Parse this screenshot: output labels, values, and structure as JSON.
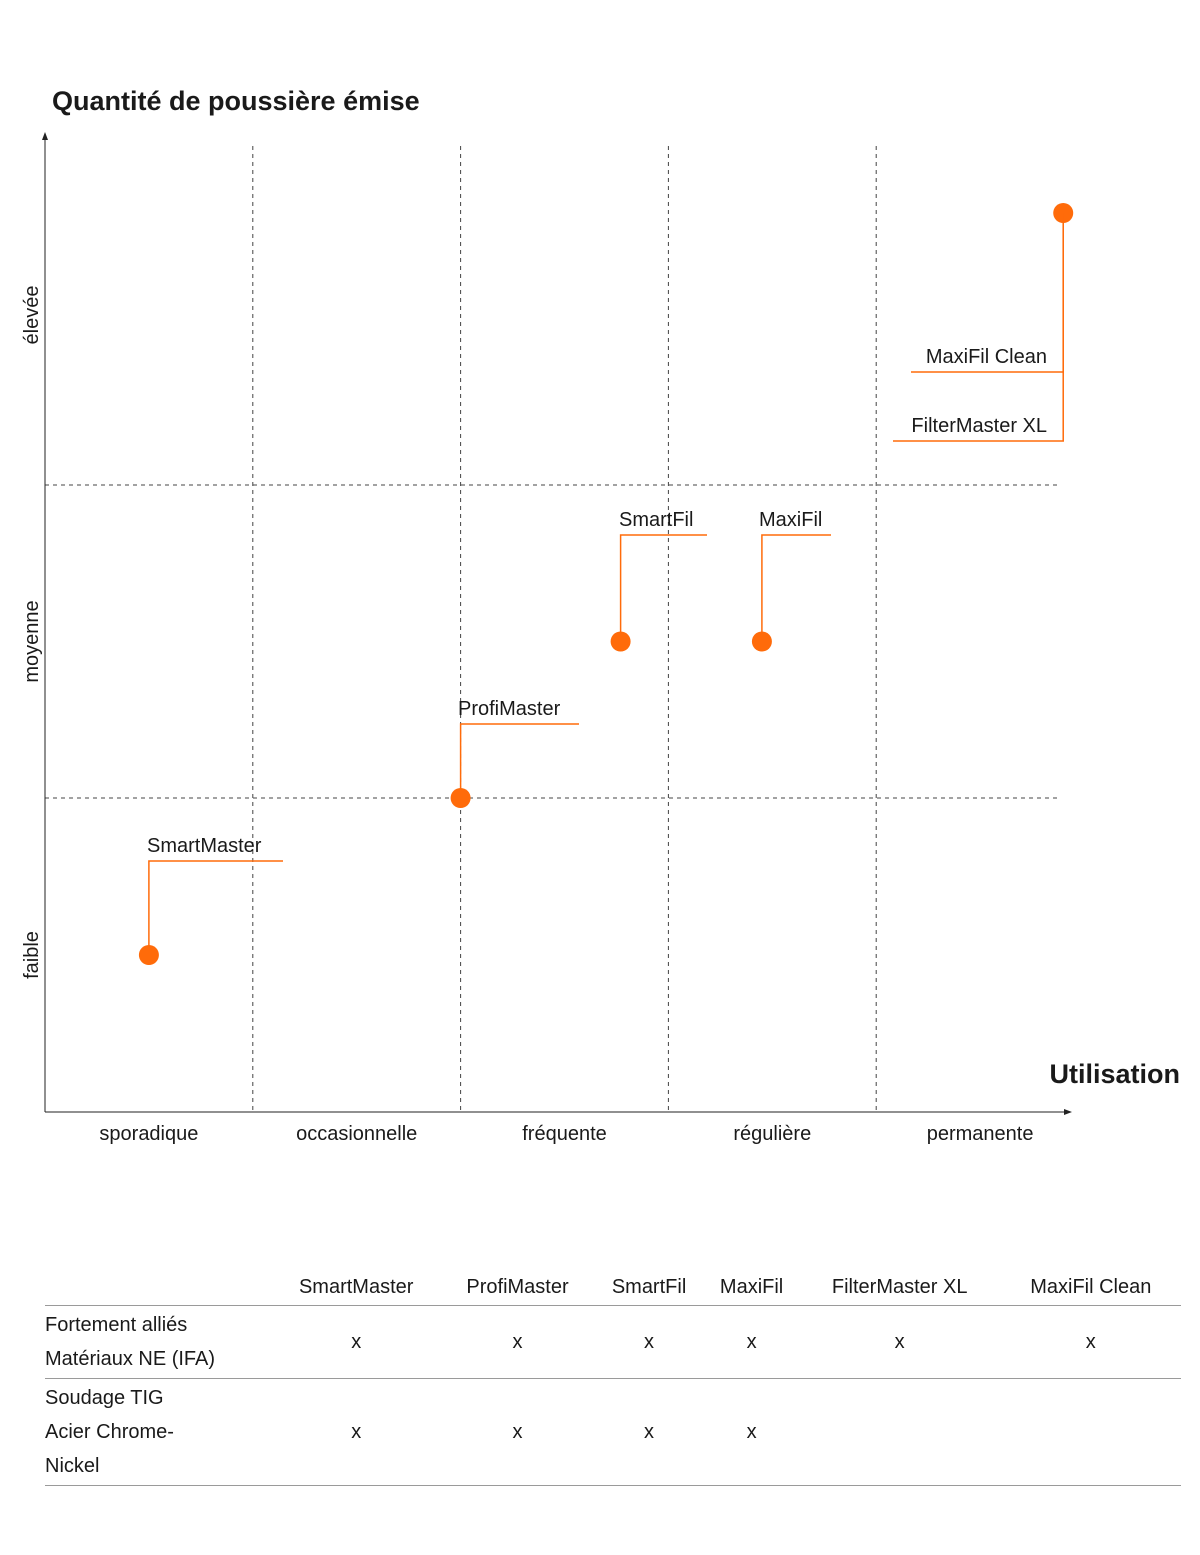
{
  "chart_data": {
    "type": "scatter",
    "title": "Quantité de poussière émise",
    "xlabel": "Utilisation",
    "ylabel": "",
    "x_categories": [
      "sporadique",
      "occasionnelle",
      "fréquente",
      "régulière",
      "permanente"
    ],
    "y_categories": [
      "faible",
      "moyenne",
      "élevée"
    ],
    "xlim": [
      0,
      5
    ],
    "ylim": [
      0,
      3
    ],
    "grid": true,
    "accent_color": "#ff6b0a",
    "points": [
      {
        "name": "SmartMaster",
        "x": 0.5,
        "y": 0.5
      },
      {
        "name": "ProfiMaster",
        "x": 2.0,
        "y": 1.0
      },
      {
        "name": "SmartFil",
        "x": 2.77,
        "y": 1.5
      },
      {
        "name": "MaxiFil",
        "x": 3.45,
        "y": 1.5
      },
      {
        "name": "MaxiFil Clean",
        "x": 4.9,
        "y": 2.8
      },
      {
        "name": "FilterMaster XL",
        "x": 4.9,
        "y": 2.8
      }
    ]
  },
  "table": {
    "columns": [
      "SmartMaster",
      "ProfiMaster",
      "SmartFil",
      "MaxiFil",
      "FilterMaster XL",
      "MaxiFil Clean"
    ],
    "rows": [
      {
        "label_lines": [
          "Fortement alliés",
          "Matériaux NE (IFA)"
        ],
        "marks": [
          "x",
          "x",
          "x",
          "x",
          "x",
          "x"
        ]
      },
      {
        "label_lines": [
          "Soudage TIG",
          "Acier Chrome-",
          "Nickel"
        ],
        "marks": [
          "x",
          "x",
          "x",
          "x",
          "",
          ""
        ]
      }
    ]
  }
}
